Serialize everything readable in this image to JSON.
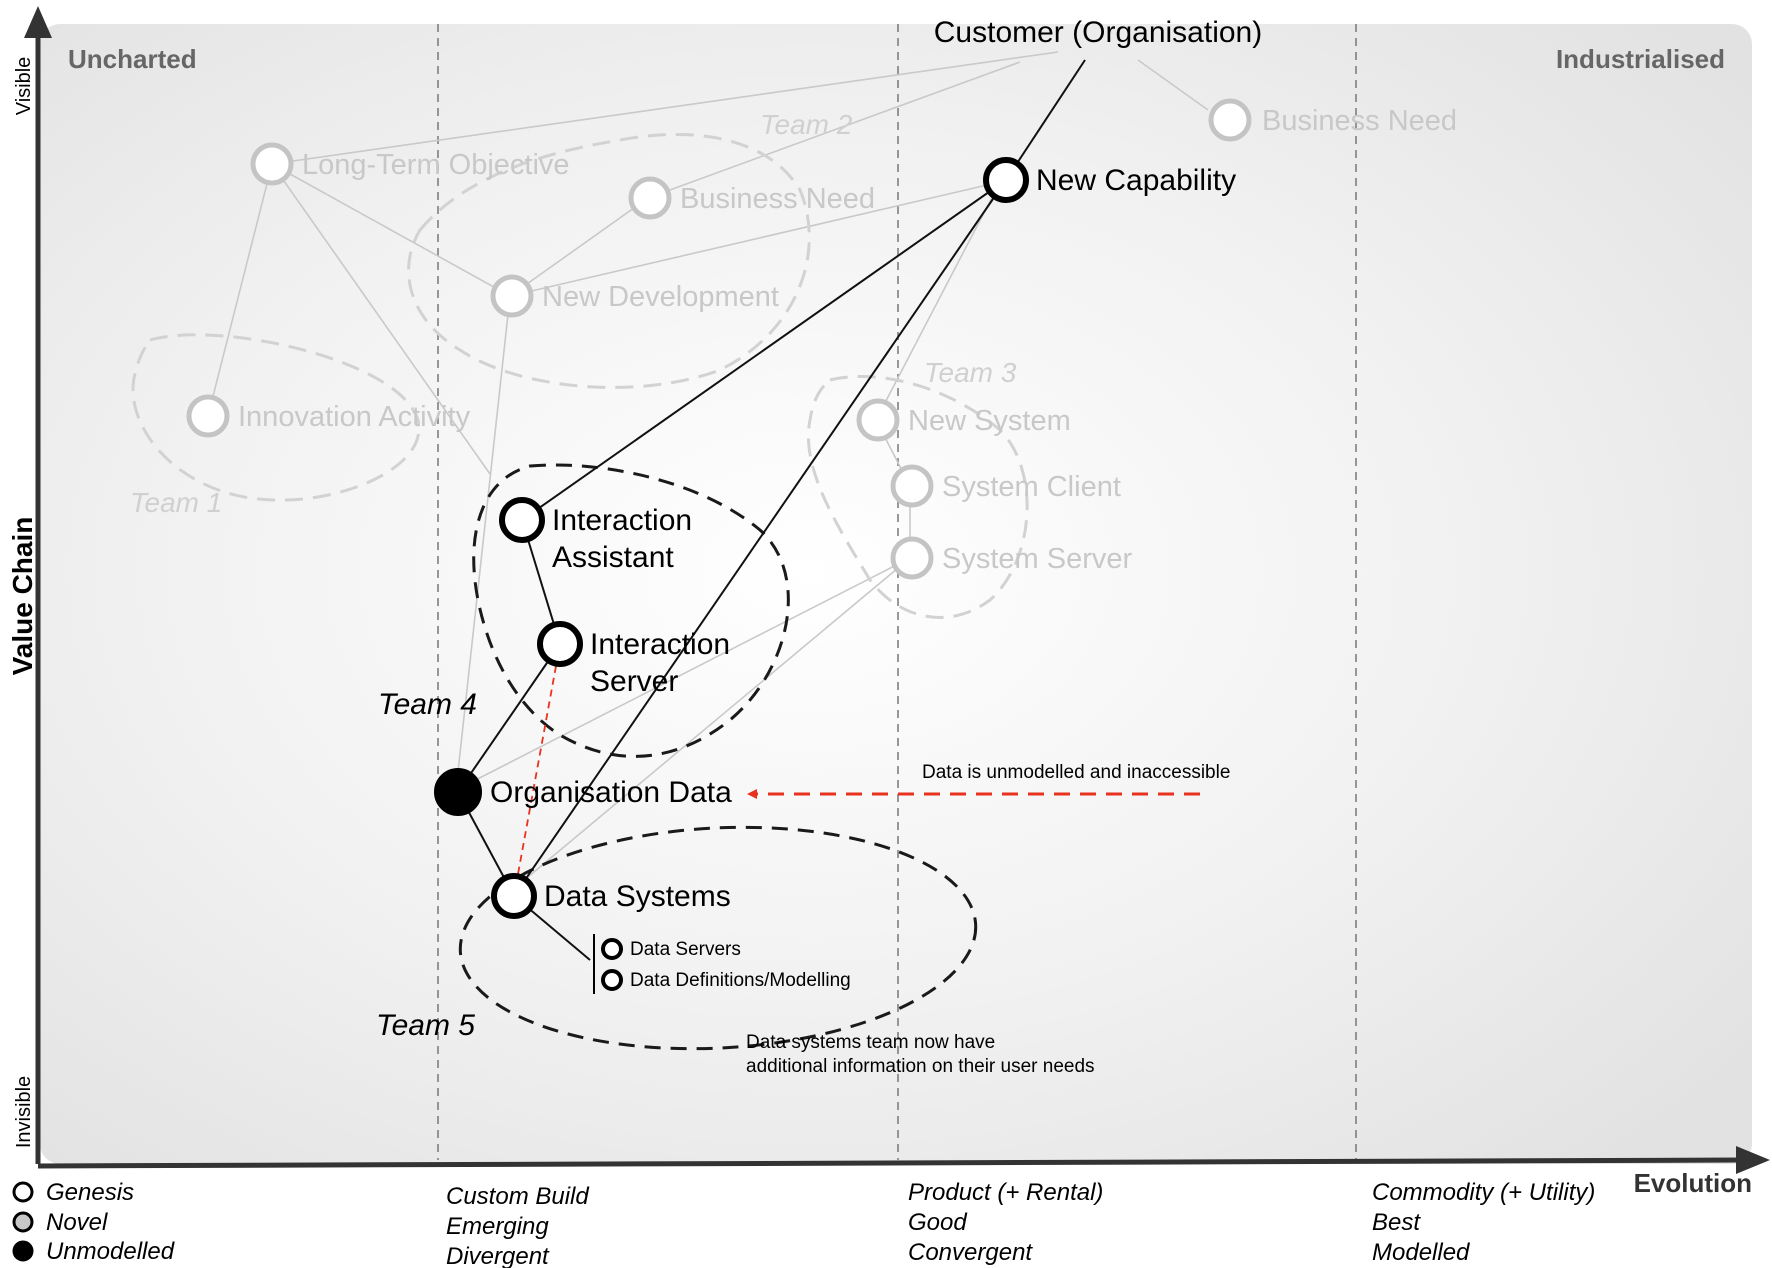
{
  "corner_labels": {
    "left": "Uncharted",
    "right": "Industrialised"
  },
  "axes": {
    "y_title": "Value Chain",
    "y_top": "Visible",
    "y_bottom": "Invisible",
    "x_title": "Evolution"
  },
  "stages": [
    {
      "lines": [
        "Custom Build",
        "Emerging",
        "Divergent"
      ]
    },
    {
      "lines": [
        "Product (+ Rental)",
        "Good",
        "Convergent"
      ]
    },
    {
      "lines": [
        "Commodity (+ Utility)",
        "Best",
        "Modelled"
      ]
    }
  ],
  "legend": [
    {
      "label": "Genesis",
      "fill": "#ffffff"
    },
    {
      "label": "Novel",
      "fill": "#c8c8c8"
    },
    {
      "label": "Unmodelled",
      "fill": "#000000"
    }
  ],
  "customer": "Customer (Organisation)",
  "faded_nodes": {
    "long_term_objective": "Long-Term Objective",
    "business_need_1": "Business Need",
    "business_need_2": "Business Need",
    "new_development": "New Development",
    "innovation_activity": "Innovation Activity",
    "new_system": "New System",
    "system_client": "System Client",
    "system_server": "System Server"
  },
  "nodes": {
    "new_capability": "New Capability",
    "interaction_assistant": [
      "Interaction",
      "Assistant"
    ],
    "interaction_server": [
      "Interaction",
      "Server"
    ],
    "organisation_data": "Organisation Data",
    "data_systems": "Data Systems"
  },
  "sub_items": [
    "Data Servers",
    "Data Definitions/Modelling"
  ],
  "teams": {
    "team1": "Team 1",
    "team2": "Team 2",
    "team3": "Team 3",
    "team4": "Team 4",
    "team5": "Team 5"
  },
  "annotations": {
    "arrow_note": "Data is unmodelled and inaccessible",
    "data_team_note": [
      "Data systems team now have",
      "additional information on their user needs"
    ]
  },
  "colors": {
    "arrow": "#e8321e",
    "faded": "#c4c4c4",
    "faded_text": "#c8c8c8",
    "team_faded": "#d0d0d0"
  }
}
